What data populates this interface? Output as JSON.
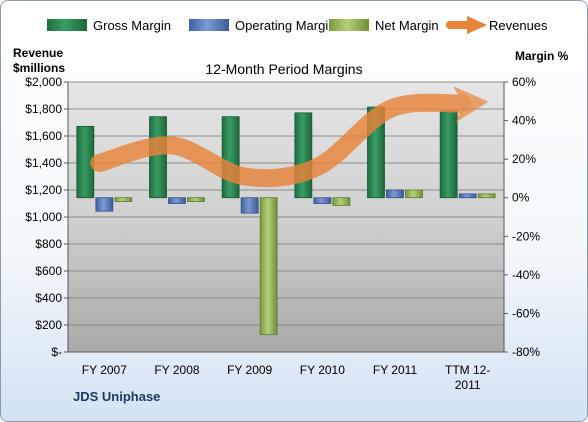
{
  "chart_data": {
    "type": "bar",
    "title": "12-Month Period Margins",
    "company": "JDS Uniphase",
    "left_axis": {
      "label_line1": "Revenue",
      "label_line2": "$millions",
      "range": [
        0,
        2000
      ],
      "ticks": [
        0,
        200,
        400,
        600,
        800,
        1000,
        1200,
        1400,
        1600,
        1800,
        2000
      ],
      "tick_labels": [
        "$-",
        "$200",
        "$400",
        "$600",
        "$800",
        "$1,000",
        "$1,200",
        "$1,400",
        "$1,600",
        "$1,800",
        "$2,000"
      ]
    },
    "right_axis": {
      "label": "Margin %",
      "range": [
        -80,
        60
      ],
      "ticks": [
        -80,
        -60,
        -40,
        -20,
        0,
        20,
        40,
        60
      ],
      "tick_labels": [
        "-80%",
        "-60%",
        "-40%",
        "-20%",
        "0%",
        "20%",
        "40%",
        "60%"
      ]
    },
    "categories": [
      "FY 2007",
      "FY 2008",
      "FY 2009",
      "FY 2010",
      "FY 2011",
      "TTM 12-2011"
    ],
    "category_label_lines": [
      [
        "FY 2007"
      ],
      [
        "FY 2008"
      ],
      [
        "FY 2009"
      ],
      [
        "FY 2010"
      ],
      [
        "FY 2011"
      ],
      [
        "TTM 12-",
        "2011"
      ]
    ],
    "series": [
      {
        "name": "Gross Margin",
        "axis": "right",
        "color": "#2e8b57",
        "values": [
          37,
          42,
          42,
          44,
          47,
          45
        ]
      },
      {
        "name": "Operating Margin",
        "axis": "right",
        "color": "#5b7fc0",
        "values": [
          -7,
          -3,
          -8,
          -3,
          4,
          2
        ]
      },
      {
        "name": "Net Margin",
        "axis": "right",
        "color": "#9bbb59",
        "values": [
          -2,
          -2,
          -71,
          -4,
          4,
          2
        ]
      },
      {
        "name": "Revenues",
        "axis": "left",
        "type": "line",
        "color": "#e8843a",
        "values": [
          1400,
          1530,
          1300,
          1370,
          1800,
          1840
        ]
      }
    ],
    "grid": true,
    "legend_position": "top"
  }
}
